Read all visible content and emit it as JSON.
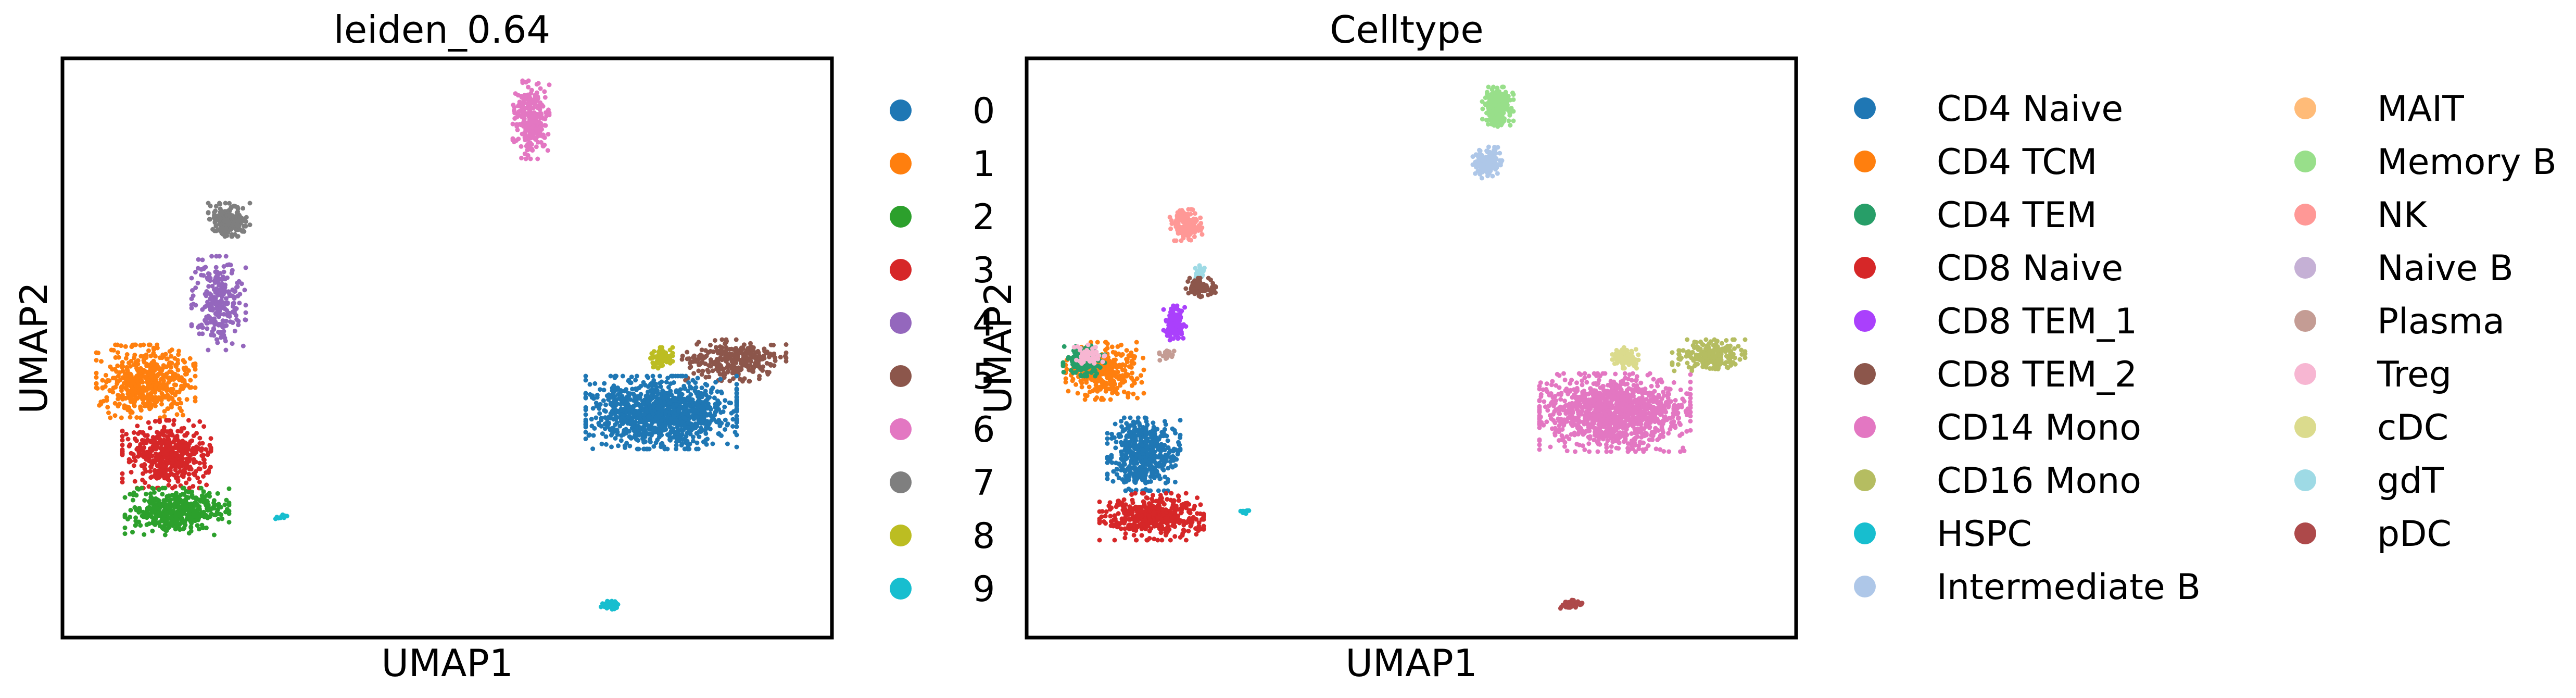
{
  "chart_data": [
    {
      "type": "scatter",
      "title": "leiden_0.64",
      "xlabel": "UMAP1",
      "ylabel": "UMAP2",
      "grid": false,
      "legend_placement": "right",
      "series": [
        {
          "name": "0",
          "color": "#1f77b4"
        },
        {
          "name": "1",
          "color": "#ff7f0e"
        },
        {
          "name": "2",
          "color": "#2ca02c"
        },
        {
          "name": "3",
          "color": "#d62728"
        },
        {
          "name": "4",
          "color": "#9467bd"
        },
        {
          "name": "5",
          "color": "#8c564b"
        },
        {
          "name": "6",
          "color": "#e377c2"
        },
        {
          "name": "7",
          "color": "#7f7f7f"
        },
        {
          "name": "8",
          "color": "#bcbd22"
        },
        {
          "name": "9",
          "color": "#17becf"
        }
      ]
    },
    {
      "type": "scatter",
      "title": "Celltype",
      "xlabel": "UMAP1",
      "ylabel": "UMAP2",
      "grid": false,
      "legend_placement": "right",
      "series": [
        {
          "name": "CD4 Naive",
          "color": "#1f77b4"
        },
        {
          "name": "CD4 TCM",
          "color": "#ff7f0e"
        },
        {
          "name": "CD4 TEM",
          "color": "#279e68"
        },
        {
          "name": "CD8 Naive",
          "color": "#d62728"
        },
        {
          "name": "CD8 TEM_1",
          "color": "#aa40fc"
        },
        {
          "name": "CD8 TEM_2",
          "color": "#8c564b"
        },
        {
          "name": "CD14 Mono",
          "color": "#e377c2"
        },
        {
          "name": "CD16 Mono",
          "color": "#b5bd61"
        },
        {
          "name": "HSPC",
          "color": "#17becf"
        },
        {
          "name": "Intermediate B",
          "color": "#aec7e8"
        },
        {
          "name": "MAIT",
          "color": "#ffbb78"
        },
        {
          "name": "Memory B",
          "color": "#98df8a"
        },
        {
          "name": "NK",
          "color": "#ff9896"
        },
        {
          "name": "Naive B",
          "color": "#c5b0d5"
        },
        {
          "name": "Plasma",
          "color": "#c49c94"
        },
        {
          "name": "Treg",
          "color": "#f7b6d2"
        },
        {
          "name": "cDC",
          "color": "#dbdb8d"
        },
        {
          "name": "gdT",
          "color": "#9edae5"
        },
        {
          "name": "pDC",
          "color": "#ad494a"
        }
      ]
    }
  ]
}
